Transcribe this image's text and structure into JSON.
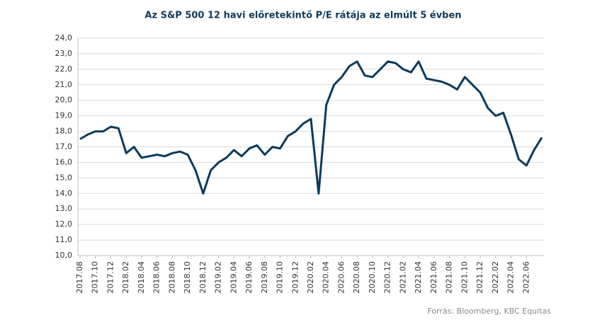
{
  "chart_data": {
    "type": "line",
    "title": "Az S&P 500 12 havi előretekintő P/E rátája az elmúlt 5 évben",
    "source": "Forrás: Bloomberg, KBC Equitas",
    "categories": [
      "2017.08",
      null,
      "2017.10",
      null,
      "2017.12",
      null,
      "2018.02",
      null,
      "2018.04",
      null,
      "2018.06",
      null,
      "2018.08",
      null,
      "2018.10",
      null,
      "2018.12",
      null,
      "2019.02",
      null,
      "2019.04",
      null,
      "2019.06",
      null,
      "2019.08",
      null,
      "2019.10",
      null,
      "2019.12",
      null,
      "2020.02",
      null,
      "2020.04",
      null,
      "2020.06",
      null,
      "2020.08",
      null,
      "2020.10",
      null,
      "2020.12",
      null,
      "2021.02",
      null,
      "2021.04",
      null,
      "2021.06",
      null,
      "2021.08",
      null,
      "2021.10",
      null,
      "2021.12",
      null,
      "2022.02",
      null,
      "2022.04",
      null,
      "2022.06",
      null,
      null
    ],
    "series": [
      {
        "name": "S&P 500 12 havi előretekintő P/E",
        "color": "#0d3a5c",
        "values": [
          17.5,
          17.8,
          18.0,
          18.0,
          18.3,
          18.2,
          16.6,
          17.0,
          16.3,
          16.4,
          16.5,
          16.4,
          16.6,
          16.7,
          16.5,
          15.5,
          14.0,
          15.5,
          16.0,
          16.3,
          16.8,
          16.4,
          16.9,
          17.1,
          16.5,
          17.0,
          16.9,
          17.7,
          18.0,
          18.5,
          18.8,
          14.0,
          19.7,
          21.0,
          21.5,
          22.2,
          22.5,
          21.6,
          21.5,
          22.0,
          22.5,
          22.4,
          22.0,
          21.8,
          22.5,
          21.4,
          21.3,
          21.2,
          21.0,
          20.7,
          21.5,
          21.0,
          20.5,
          19.5,
          19.0,
          19.2,
          17.8,
          16.2,
          15.8,
          16.8,
          17.6
        ]
      }
    ],
    "ylim": [
      10,
      24
    ],
    "yticks": [
      {
        "value": 10,
        "label": "10,0"
      },
      {
        "value": 11,
        "label": "11,0"
      },
      {
        "value": 12,
        "label": "12,0"
      },
      {
        "value": 13,
        "label": "13,0"
      },
      {
        "value": 14,
        "label": "14,0"
      },
      {
        "value": 15,
        "label": "15,0"
      },
      {
        "value": 16,
        "label": "16,0"
      },
      {
        "value": 17,
        "label": "17,0"
      },
      {
        "value": 18,
        "label": "18,0"
      },
      {
        "value": 19,
        "label": "19,0"
      },
      {
        "value": 20,
        "label": "20,0"
      },
      {
        "value": 21,
        "label": "21,0"
      },
      {
        "value": 22,
        "label": "22,0"
      },
      {
        "value": 23,
        "label": "23,0"
      },
      {
        "value": 24,
        "label": "24,0"
      }
    ],
    "grid": true
  }
}
